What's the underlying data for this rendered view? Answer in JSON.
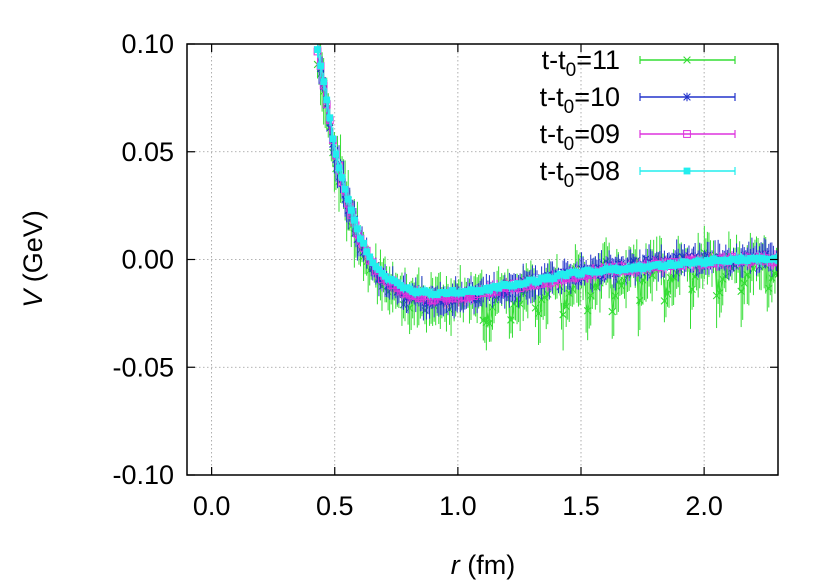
{
  "chart_data": {
    "type": "scatter",
    "xlabel": {
      "var": "r",
      "unit": " (fm)"
    },
    "ylabel": {
      "var": "V",
      "unit": " (GeV)"
    },
    "xlim": [
      -0.1,
      2.3
    ],
    "ylim": [
      -0.1,
      0.1
    ],
    "xticks": [
      0.0,
      0.5,
      1.0,
      1.5,
      2.0
    ],
    "xtick_labels": [
      "0.0",
      "0.5",
      "1.0",
      "1.5",
      "2.0"
    ],
    "yticks": [
      -0.1,
      -0.05,
      0.0,
      0.05,
      0.1
    ],
    "ytick_labels": [
      "-0.10",
      "-0.05",
      "0.00",
      "0.05",
      "0.10"
    ],
    "grid": true,
    "legend_position": "top-right",
    "error_bars": true,
    "series": [
      {
        "name": "t-t0=11",
        "legend": {
          "main": "t-t",
          "sub": "0",
          "rest": "=11"
        },
        "color": "#33dd33",
        "marker": "x",
        "noise": 0.01,
        "sawtooth": 0.016,
        "x": [
          0.43,
          0.45,
          0.48,
          0.5,
          0.55,
          0.6,
          0.65,
          0.7,
          0.8,
          0.9,
          1.0,
          1.1,
          1.2,
          1.3,
          1.4,
          1.5,
          1.6,
          1.7,
          1.8,
          1.9,
          2.0,
          2.1,
          2.2,
          2.3
        ],
        "y": [
          0.095,
          0.082,
          0.062,
          0.048,
          0.026,
          0.008,
          -0.004,
          -0.011,
          -0.018,
          -0.02,
          -0.019,
          -0.017,
          -0.015,
          -0.012,
          -0.009,
          -0.007,
          -0.005,
          -0.003,
          -0.002,
          -0.001,
          0.0,
          0.0,
          0.001,
          0.001
        ]
      },
      {
        "name": "t-t0=10",
        "legend": {
          "main": "t-t",
          "sub": "0",
          "rest": "=10"
        },
        "color": "#2233cc",
        "marker": "asterisk",
        "noise": 0.006,
        "sawtooth": 0.0,
        "x": [
          0.43,
          0.45,
          0.48,
          0.5,
          0.55,
          0.6,
          0.65,
          0.7,
          0.8,
          0.9,
          1.0,
          1.1,
          1.2,
          1.3,
          1.4,
          1.5,
          1.6,
          1.7,
          1.8,
          1.9,
          2.0,
          2.1,
          2.2,
          2.3
        ],
        "y": [
          0.096,
          0.083,
          0.063,
          0.049,
          0.027,
          0.009,
          -0.003,
          -0.01,
          -0.017,
          -0.019,
          -0.018,
          -0.016,
          -0.014,
          -0.011,
          -0.009,
          -0.007,
          -0.005,
          -0.003,
          -0.002,
          -0.001,
          0.0,
          0.0,
          0.001,
          0.001
        ]
      },
      {
        "name": "t-t0=09",
        "legend": {
          "main": "t-t",
          "sub": "0",
          "rest": "=09"
        },
        "color": "#dd33dd",
        "marker": "open-square",
        "noise": 0.003,
        "sawtooth": 0.0,
        "x": [
          0.43,
          0.45,
          0.48,
          0.5,
          0.55,
          0.6,
          0.65,
          0.7,
          0.8,
          0.9,
          1.0,
          1.1,
          1.2,
          1.3,
          1.4,
          1.5,
          1.6,
          1.7,
          1.8,
          1.9,
          2.0,
          2.1,
          2.2,
          2.3
        ],
        "y": [
          0.097,
          0.084,
          0.064,
          0.05,
          0.028,
          0.01,
          -0.002,
          -0.009,
          -0.016,
          -0.018,
          -0.017,
          -0.015,
          -0.013,
          -0.011,
          -0.009,
          -0.007,
          -0.005,
          -0.004,
          -0.003,
          -0.002,
          -0.001,
          0.0,
          0.0,
          0.0
        ]
      },
      {
        "name": "t-t0=08",
        "legend": {
          "main": "t-t",
          "sub": "0",
          "rest": "=08"
        },
        "color": "#22eeee",
        "marker": "filled-square",
        "noise": 0.002,
        "sawtooth": 0.0,
        "x": [
          0.43,
          0.45,
          0.48,
          0.5,
          0.55,
          0.6,
          0.65,
          0.7,
          0.8,
          0.9,
          1.0,
          1.1,
          1.2,
          1.3,
          1.4,
          1.5,
          1.6,
          1.7,
          1.8,
          1.9,
          2.0,
          2.1,
          2.2,
          2.3
        ],
        "y": [
          0.097,
          0.085,
          0.065,
          0.051,
          0.029,
          0.011,
          -0.001,
          -0.008,
          -0.014,
          -0.016,
          -0.015,
          -0.014,
          -0.012,
          -0.01,
          -0.008,
          -0.006,
          -0.005,
          -0.004,
          -0.003,
          -0.002,
          -0.001,
          0.0,
          0.0,
          0.0
        ]
      }
    ]
  }
}
